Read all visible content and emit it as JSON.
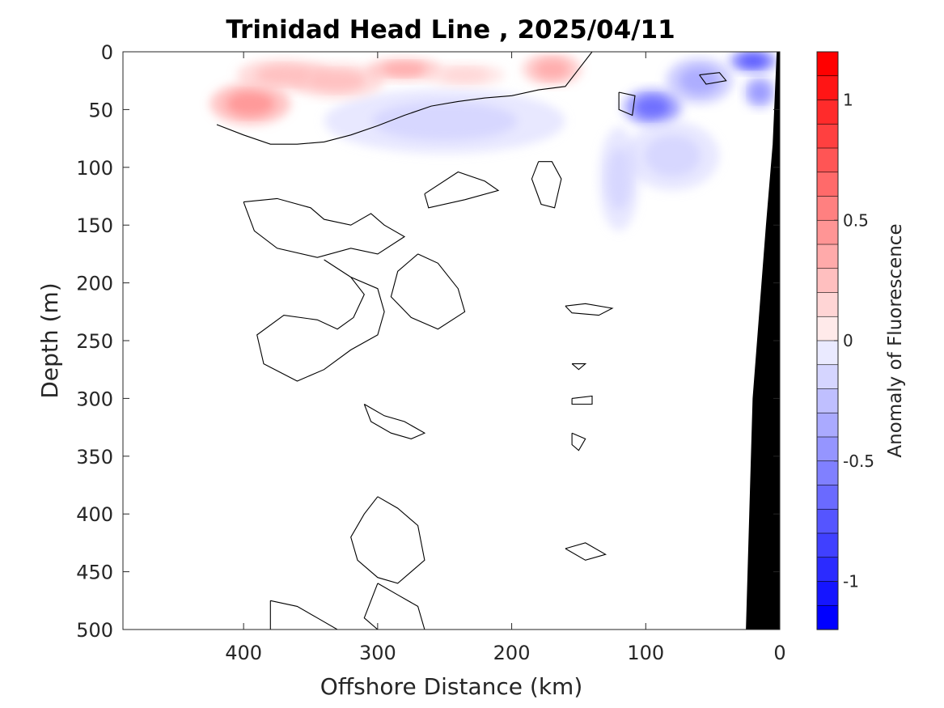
{
  "chart_data": {
    "type": "heatmap",
    "title": "Trinidad Head Line , 2025/04/11",
    "xlabel": "Offshore Distance (km)",
    "ylabel": "Depth (m)",
    "colorbar_label": "Anomaly of Fluorescence",
    "xlim": [
      490,
      0
    ],
    "ylim": [
      0,
      500
    ],
    "y_reversed": true,
    "x_reversed": true,
    "grid": false,
    "x_ticks": [
      400,
      300,
      200,
      100,
      0
    ],
    "x_tick_labels": [
      "400",
      "300",
      "200",
      "100",
      "0"
    ],
    "y_ticks": [
      0,
      50,
      100,
      150,
      200,
      250,
      300,
      350,
      400,
      450,
      500
    ],
    "y_tick_labels": [
      "0",
      "50",
      "100",
      "150",
      "200",
      "250",
      "300",
      "350",
      "400",
      "450",
      "500"
    ],
    "colorbar": {
      "range": [
        -1.2,
        1.2
      ],
      "ticks": [
        1,
        0.5,
        0,
        -0.5,
        -1
      ],
      "tick_labels": [
        "1",
        "0.5",
        "0",
        "-0.5",
        "-1"
      ],
      "levels": 24,
      "colors": {
        "positive": "#ff0000",
        "neutral": "#ffffff",
        "negative": "#0000ff",
        "bathymetry": "#000000"
      }
    },
    "positive_anomalies": [
      {
        "x": 395,
        "y": 45,
        "rx": 30,
        "ry": 18,
        "value": 0.45
      },
      {
        "x": 370,
        "y": 20,
        "rx": 35,
        "ry": 14,
        "value": 0.3
      },
      {
        "x": 330,
        "y": 25,
        "rx": 35,
        "ry": 15,
        "value": 0.25
      },
      {
        "x": 280,
        "y": 15,
        "rx": 28,
        "ry": 10,
        "value": 0.35
      },
      {
        "x": 235,
        "y": 20,
        "rx": 30,
        "ry": 10,
        "value": 0.2
      },
      {
        "x": 170,
        "y": 15,
        "rx": 22,
        "ry": 14,
        "value": 0.35
      }
    ],
    "negative_anomalies": [
      {
        "x": 95,
        "y": 48,
        "rx": 22,
        "ry": 16,
        "value": -0.7
      },
      {
        "x": 20,
        "y": 8,
        "rx": 18,
        "ry": 10,
        "value": -0.8
      },
      {
        "x": 15,
        "y": 35,
        "rx": 12,
        "ry": 14,
        "value": -0.5
      },
      {
        "x": 60,
        "y": 25,
        "rx": 25,
        "ry": 20,
        "value": -0.35
      },
      {
        "x": 80,
        "y": 90,
        "rx": 35,
        "ry": 30,
        "value": -0.2
      },
      {
        "x": 120,
        "y": 110,
        "rx": 15,
        "ry": 45,
        "value": -0.15
      },
      {
        "x": 250,
        "y": 60,
        "rx": 90,
        "ry": 28,
        "value": -0.12
      }
    ],
    "zero_contours": [
      [
        [
          420,
          63
        ],
        [
          400,
          72
        ],
        [
          380,
          80
        ],
        [
          360,
          80
        ],
        [
          340,
          78
        ],
        [
          320,
          72
        ],
        [
          300,
          64
        ],
        [
          280,
          55
        ],
        [
          260,
          47
        ],
        [
          240,
          43
        ],
        [
          220,
          40
        ],
        [
          200,
          38
        ],
        [
          180,
          33
        ],
        [
          160,
          30
        ],
        [
          150,
          15
        ],
        [
          140,
          0
        ]
      ],
      [
        [
          180,
          95
        ],
        [
          170,
          95
        ],
        [
          163,
          110
        ],
        [
          168,
          135
        ],
        [
          178,
          132
        ],
        [
          185,
          110
        ],
        [
          180,
          95
        ]
      ],
      [
        [
          120,
          35
        ],
        [
          108,
          38
        ],
        [
          110,
          55
        ],
        [
          120,
          50
        ],
        [
          120,
          35
        ]
      ],
      [
        [
          60,
          20
        ],
        [
          45,
          18
        ],
        [
          40,
          25
        ],
        [
          55,
          28
        ],
        [
          60,
          20
        ]
      ],
      [
        [
          265,
          123
        ],
        [
          240,
          104
        ],
        [
          220,
          112
        ],
        [
          210,
          120
        ],
        [
          235,
          128
        ],
        [
          262,
          135
        ],
        [
          265,
          123
        ]
      ],
      [
        [
          400,
          130
        ],
        [
          375,
          127
        ],
        [
          350,
          135
        ],
        [
          340,
          145
        ],
        [
          320,
          150
        ],
        [
          305,
          140
        ],
        [
          295,
          150
        ],
        [
          280,
          160
        ],
        [
          300,
          175
        ],
        [
          320,
          170
        ],
        [
          345,
          178
        ],
        [
          375,
          170
        ],
        [
          392,
          155
        ],
        [
          400,
          130
        ]
      ],
      [
        [
          340,
          180
        ],
        [
          320,
          195
        ],
        [
          310,
          210
        ],
        [
          318,
          230
        ],
        [
          330,
          240
        ],
        [
          345,
          232
        ],
        [
          370,
          228
        ],
        [
          390,
          245
        ],
        [
          385,
          270
        ],
        [
          360,
          285
        ],
        [
          340,
          275
        ],
        [
          320,
          258
        ],
        [
          300,
          245
        ],
        [
          295,
          225
        ],
        [
          300,
          205
        ],
        [
          320,
          195
        ],
        [
          340,
          180
        ]
      ],
      [
        [
          270,
          175
        ],
        [
          255,
          183
        ],
        [
          240,
          205
        ],
        [
          235,
          225
        ],
        [
          255,
          240
        ],
        [
          275,
          230
        ],
        [
          290,
          212
        ],
        [
          285,
          190
        ],
        [
          270,
          175
        ]
      ],
      [
        [
          300,
          385
        ],
        [
          285,
          395
        ],
        [
          270,
          410
        ],
        [
          265,
          440
        ],
        [
          285,
          460
        ],
        [
          300,
          455
        ],
        [
          315,
          440
        ],
        [
          320,
          420
        ],
        [
          310,
          400
        ],
        [
          300,
          385
        ]
      ],
      [
        [
          310,
          305
        ],
        [
          295,
          315
        ],
        [
          280,
          320
        ],
        [
          265,
          330
        ],
        [
          275,
          335
        ],
        [
          290,
          330
        ],
        [
          305,
          320
        ],
        [
          310,
          305
        ]
      ],
      [
        [
          300,
          460
        ],
        [
          285,
          470
        ],
        [
          270,
          480
        ],
        [
          265,
          500
        ],
        [
          300,
          500
        ],
        [
          310,
          490
        ],
        [
          300,
          460
        ]
      ],
      [
        [
          380,
          475
        ],
        [
          360,
          480
        ],
        [
          345,
          490
        ],
        [
          330,
          500
        ],
        [
          380,
          500
        ],
        [
          380,
          475
        ]
      ],
      [
        [
          160,
          220
        ],
        [
          145,
          218
        ],
        [
          125,
          222
        ],
        [
          135,
          228
        ],
        [
          155,
          226
        ],
        [
          160,
          220
        ]
      ],
      [
        [
          155,
          270
        ],
        [
          145,
          270
        ],
        [
          150,
          275
        ],
        [
          155,
          270
        ]
      ],
      [
        [
          155,
          300
        ],
        [
          140,
          298
        ],
        [
          140,
          305
        ],
        [
          155,
          305
        ],
        [
          155,
          300
        ]
      ],
      [
        [
          155,
          330
        ],
        [
          145,
          335
        ],
        [
          150,
          345
        ],
        [
          155,
          340
        ],
        [
          155,
          330
        ]
      ],
      [
        [
          160,
          430
        ],
        [
          145,
          425
        ],
        [
          130,
          435
        ],
        [
          145,
          440
        ],
        [
          160,
          430
        ]
      ]
    ],
    "seafloor_polygon": [
      [
        2,
        0
      ],
      [
        0,
        0
      ],
      [
        0,
        500
      ],
      [
        25,
        500
      ],
      [
        20,
        300
      ],
      [
        10,
        150
      ],
      [
        5,
        80
      ],
      [
        2,
        0
      ]
    ]
  }
}
